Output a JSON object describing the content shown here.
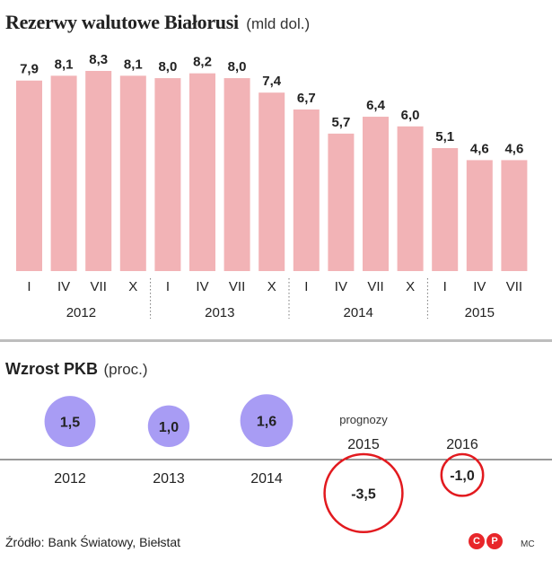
{
  "reserves": {
    "title": "Rezerwy walutowe Białorusi",
    "unit": "(mld dol.)"
  },
  "gdp": {
    "title": "Wzrost PKB",
    "unit": "(proc.)",
    "forecast_label": "prognozy"
  },
  "footer": {
    "source": "Źródło: Bank Światowy, Biełstat",
    "logo_letters": [
      "C",
      "P"
    ],
    "author": "MC"
  },
  "colors": {
    "bar": "#f2b3b6",
    "positive_bubble": "#a89cf4",
    "negative_ring": "#e21a1f"
  },
  "chart_data": [
    {
      "type": "bar",
      "categories": [
        "I",
        "IV",
        "VII",
        "X",
        "I",
        "IV",
        "VII",
        "X",
        "I",
        "IV",
        "VII",
        "X",
        "I",
        "IV",
        "VII"
      ],
      "groups": [
        {
          "label": "2012",
          "count": 4
        },
        {
          "label": "2013",
          "count": 4
        },
        {
          "label": "2014",
          "count": 4
        },
        {
          "label": "2015",
          "count": 3
        }
      ],
      "values": [
        7.9,
        8.1,
        8.3,
        8.1,
        8.0,
        8.2,
        8.0,
        7.4,
        6.7,
        5.7,
        6.4,
        6.0,
        5.1,
        4.6,
        4.6
      ],
      "value_labels": [
        "7,9",
        "8,1",
        "8,3",
        "8,1",
        "8,0",
        "8,2",
        "8,0",
        "7,4",
        "6,7",
        "5,7",
        "6,4",
        "6,0",
        "5,1",
        "4,6",
        "4,6"
      ],
      "title": "Rezerwy walutowe Białorusi",
      "ylabel": "(mld dol.)",
      "ylim": [
        0,
        8.3
      ],
      "grid": false
    },
    {
      "type": "bubble",
      "categories": [
        "2012",
        "2013",
        "2014",
        "2015",
        "2016"
      ],
      "values": [
        1.5,
        1.0,
        1.6,
        -3.5,
        -1.0
      ],
      "value_labels": [
        "1,5",
        "1,0",
        "1,6",
        "-3,5",
        "-1,0"
      ],
      "forecast": [
        false,
        false,
        false,
        true,
        true
      ],
      "title": "Wzrost PKB",
      "ylabel": "(proc.)"
    }
  ]
}
